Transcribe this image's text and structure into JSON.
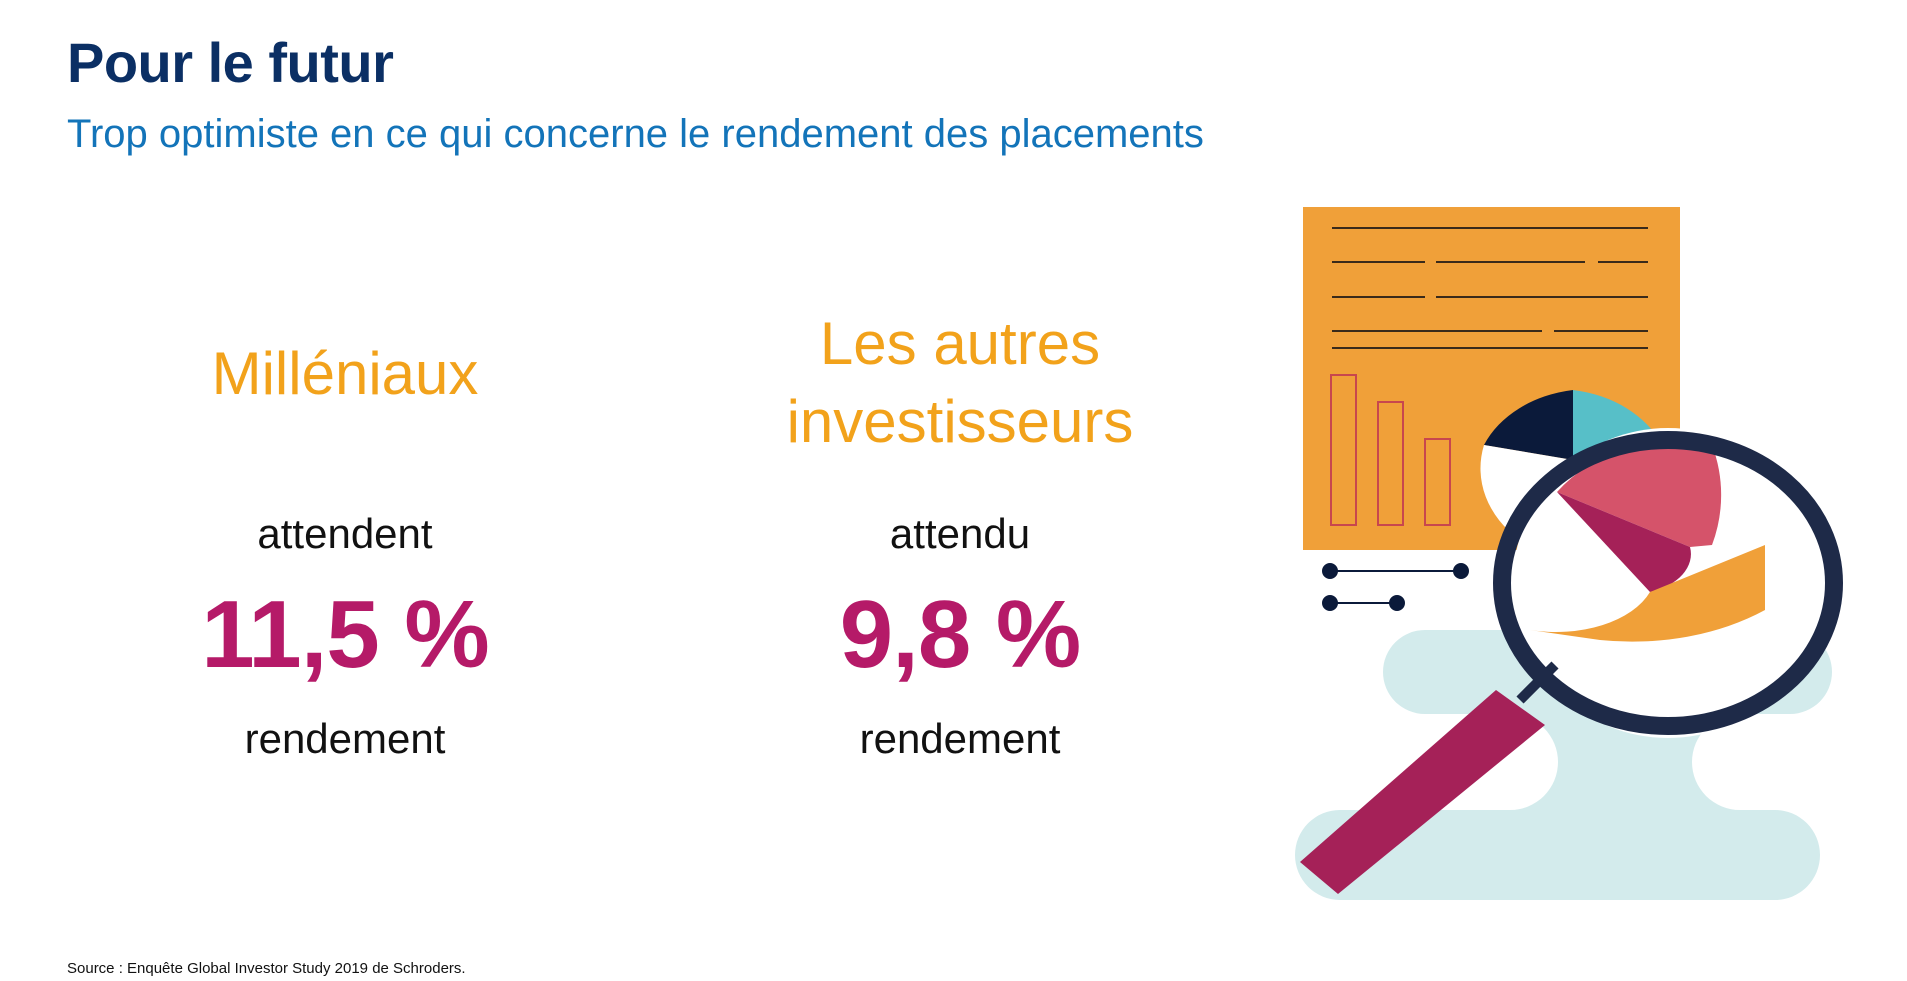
{
  "header": {
    "title": "Pour le futur",
    "subtitle": "Trop optimiste en ce qui concerne le rendement des placements"
  },
  "groups": [
    {
      "label": "Milléniaux",
      "verb": "attendent",
      "value": "11,5 %",
      "unit": "rendement"
    },
    {
      "label_lines": [
        "Les autres",
        "investisseurs"
      ],
      "verb": "attendu",
      "value": "9,8 %",
      "unit": "rendement"
    }
  ],
  "footer": {
    "source": "Source : Enquête Global Investor Study 2019 de Schroders."
  },
  "illustration": {
    "name": "report-magnifier-illustration",
    "colors": {
      "paper": "#f0a039",
      "navy": "#0b1a3a",
      "teal": "#57bfc8",
      "coral": "#d5536a",
      "magenta": "#a52158",
      "cloud": "#d3ebec",
      "lens_ring": "#1e2a48"
    }
  }
}
